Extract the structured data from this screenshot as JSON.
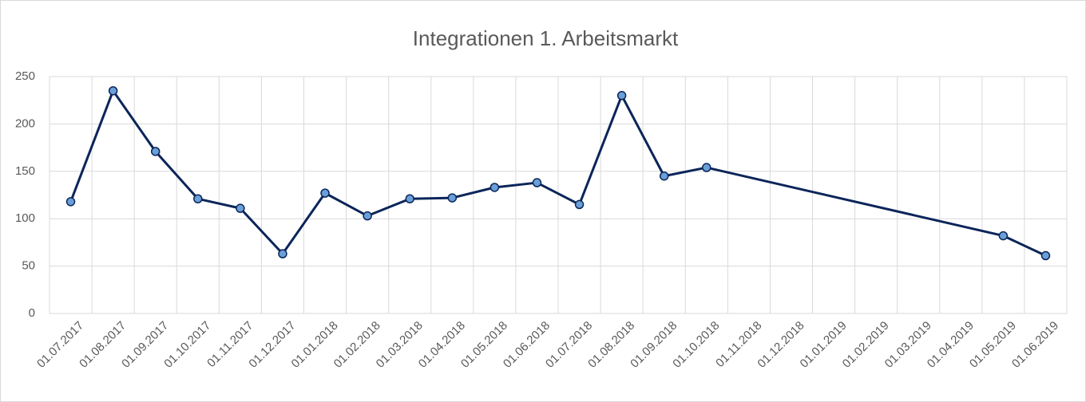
{
  "chart_data": {
    "type": "line",
    "title": "Integrationen 1. Arbeitsmarkt",
    "categories": [
      "01.07.2017",
      "01.08.2017",
      "01.09.2017",
      "01.10.2017",
      "01.11.2017",
      "01.12.2017",
      "01.01.2018",
      "01.02.2018",
      "01.03.2018",
      "01.04.2018",
      "01.05.2018",
      "01.06.2018",
      "01.07.2018",
      "01.08.2018",
      "01.09.2018",
      "01.10.2018",
      "01.11.2018",
      "01.12.2018",
      "01.01.2019",
      "01.02.2019",
      "01.03.2019",
      "01.04.2019",
      "01.05.2019",
      "01.06.2019"
    ],
    "series": [
      {
        "name": "Integrationen 1. Arbeitsmarkt",
        "color": "#0b2559",
        "marker_color": "#6a9fd8",
        "values": [
          118,
          235,
          171,
          121,
          111,
          63,
          127,
          103,
          121,
          122,
          133,
          138,
          115,
          230,
          145,
          154,
          null,
          null,
          null,
          null,
          null,
          null,
          82,
          61
        ]
      }
    ],
    "span_gaps": true,
    "ylim": [
      0,
      250
    ],
    "yticks": [
      0,
      50,
      100,
      150,
      200,
      250
    ],
    "grid": true
  }
}
